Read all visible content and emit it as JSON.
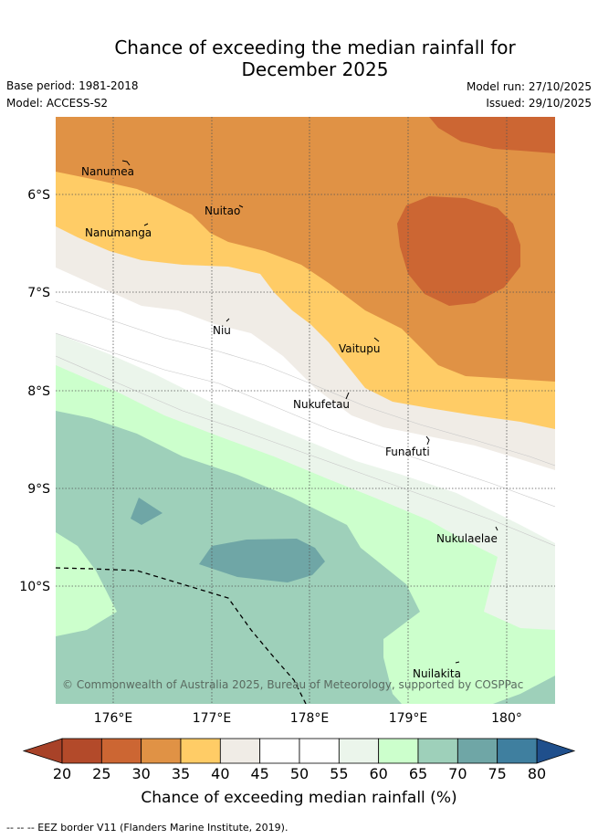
{
  "title_line1": "Chance of exceeding the median rainfall for",
  "title_line2": "December 2025",
  "base_period": "Base period: 1981-2018",
  "model": "Model: ACCESS-S2",
  "model_run": "Model run: 27/10/2025",
  "issued": "Issued: 29/10/2025",
  "map": {
    "lat_labels": [
      "6°S",
      "7°S",
      "8°S",
      "9°S",
      "10°S"
    ],
    "lon_labels": [
      "176°E",
      "177°E",
      "178°E",
      "179°E",
      "180°"
    ],
    "places": [
      "Nanumea",
      "Nuitao",
      "Nanumanga",
      "Niu",
      "Vaitupu",
      "Nukufetau",
      "Funafuti",
      "Nukulaelae",
      "Nuilakita"
    ],
    "copyright": "© Commonwealth of Australia 2025, Bureau of Meteorology, supported by COSPPac"
  },
  "colorbar": {
    "ticks": [
      "20",
      "25",
      "30",
      "35",
      "40",
      "45",
      "50",
      "55",
      "60",
      "65",
      "70",
      "75",
      "80"
    ],
    "colors": [
      "#b34a2a",
      "#cc6633",
      "#e09245",
      "#ffcc66",
      "#f0ece6",
      "#ffffff",
      "#ffffff",
      "#ebf5eb",
      "#ccffcc",
      "#9ed0ba",
      "#6fa6a6",
      "#3f7f9f"
    ],
    "under_color": "#a84228",
    "over_color": "#1f4f8c",
    "label": "Chance of exceeding median rainfall (%)"
  },
  "footer": "--  --  -- EEZ border V11 (Flanders Marine Institute, 2019)."
}
